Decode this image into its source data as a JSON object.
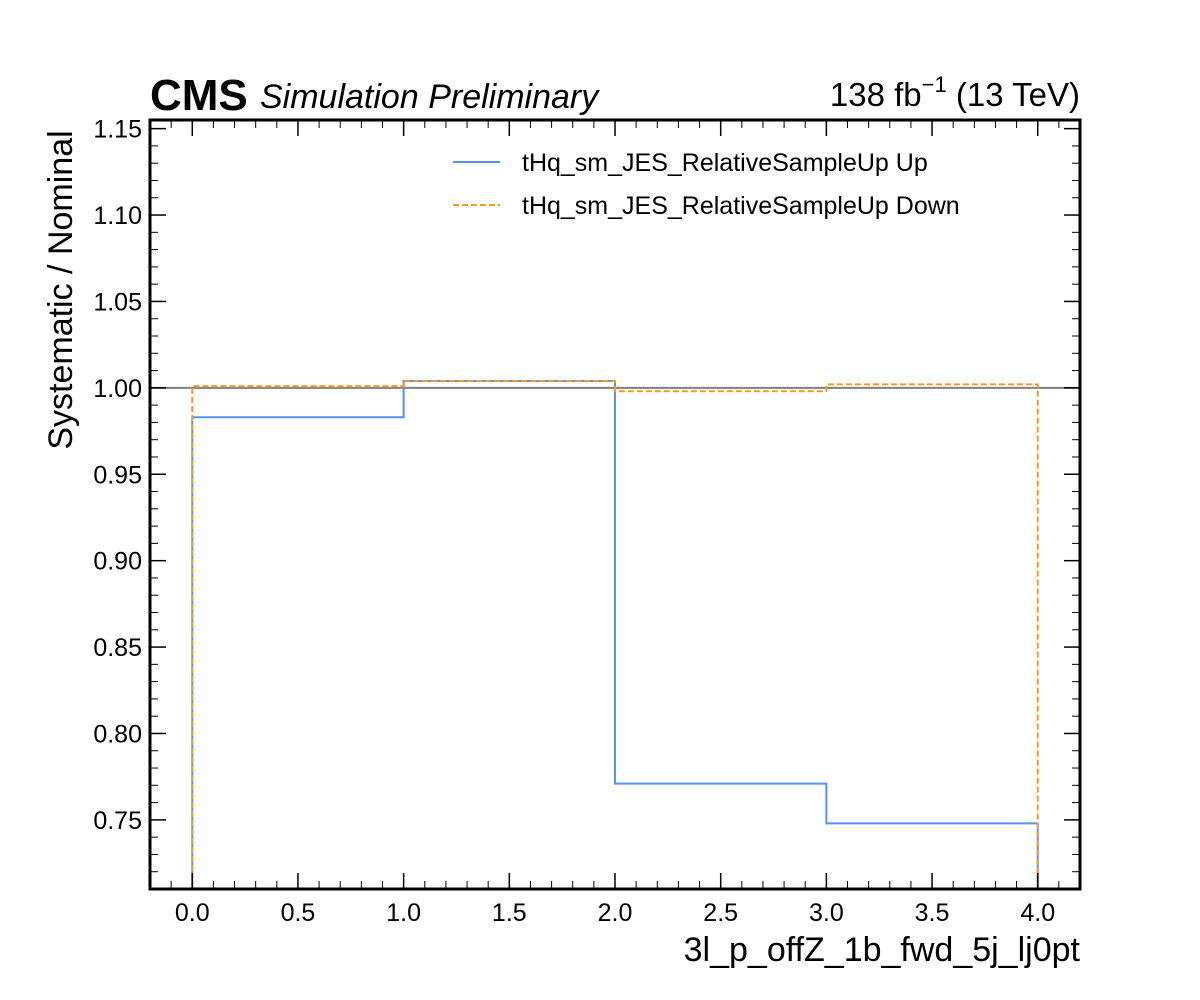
{
  "header": {
    "experiment": "CMS",
    "status": "Simulation Preliminary",
    "lumi_value": "138 fb",
    "lumi_exponent": "−1",
    "energy": " (13 TeV)"
  },
  "chart_data": {
    "type": "line",
    "drawstyle": "step",
    "xlabel": "3l_p_offZ_1b_fwd_5j_lj0pt",
    "ylabel": "Systematic / Nominal",
    "xlim": [
      -0.2,
      4.2
    ],
    "ylim": [
      0.71,
      1.155
    ],
    "xticks": [
      0.0,
      0.5,
      1.0,
      1.5,
      2.0,
      2.5,
      3.0,
      3.5,
      4.0
    ],
    "xtick_labels": [
      "0.0",
      "0.5",
      "1.0",
      "1.5",
      "2.0",
      "2.5",
      "3.0",
      "3.5",
      "4.0"
    ],
    "yticks": [
      0.75,
      0.8,
      0.85,
      0.9,
      0.95,
      1.0,
      1.05,
      1.1,
      1.15
    ],
    "ytick_labels": [
      "0.75",
      "0.80",
      "0.85",
      "0.90",
      "0.95",
      "1.00",
      "1.05",
      "1.10",
      "1.15"
    ],
    "reference_line": {
      "y": 1.0,
      "color": "#808080"
    },
    "bin_edges": [
      0,
      1,
      2,
      3,
      4
    ],
    "series": [
      {
        "name": "tHq_sm_JES_RelativeSampleUp Up",
        "color": "#5790fc",
        "style": "solid",
        "values": [
          0.983,
          1.004,
          0.771,
          0.748
        ]
      },
      {
        "name": "tHq_sm_JES_RelativeSampleUp Down",
        "color": "#f89c20",
        "style": "dashed",
        "values": [
          1.001,
          1.004,
          0.998,
          1.002
        ]
      }
    ],
    "legend_position": "top-right",
    "grid": false
  }
}
